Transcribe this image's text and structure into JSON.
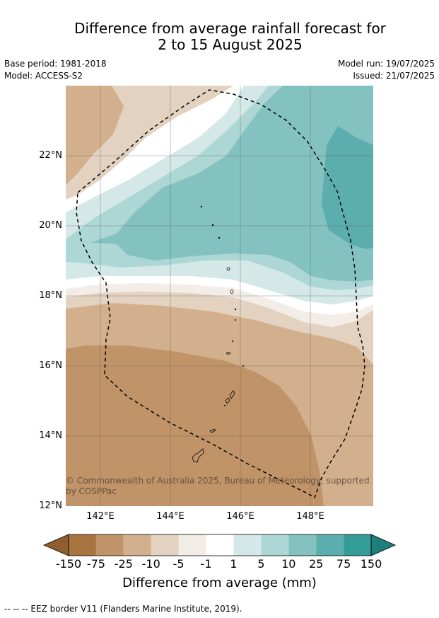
{
  "title": {
    "line1": "Difference from average rainfall forecast for",
    "line2": "2 to 15 August 2025"
  },
  "meta": {
    "base_period": "Base period: 1981-2018",
    "model": "Model: ACCESS-S2",
    "model_run": "Model run: 19/07/2025",
    "issued": "Issued: 21/07/2025"
  },
  "axes": {
    "lat_labels": [
      "22°N",
      "20°N",
      "18°N",
      "16°N",
      "14°N",
      "12°N"
    ],
    "lon_labels": [
      "142°E",
      "144°E",
      "146°E",
      "148°E"
    ]
  },
  "copyright": "© Commonwealth of Australia 2025, Bureau of Meteorology, supported by COSPPac",
  "colorbar": {
    "title": "Difference from average (mm)",
    "labels": [
      "-150",
      "-75",
      "-25",
      "-10",
      "-5",
      "-1",
      "1",
      "5",
      "10",
      "25",
      "75",
      "150"
    ],
    "colors": [
      "#a87440",
      "#c09468",
      "#d2b08e",
      "#e4d2c0",
      "#f2ede6",
      "#ffffff",
      "#d4e9e7",
      "#add7d5",
      "#84c2c1",
      "#5caeae",
      "#349d9a"
    ],
    "under_color": "#8e5e30",
    "over_color": "#1e7f7c"
  },
  "footnote": "--  --  -- EEZ border V11 (Flanders Marine Institute, 2019)."
}
